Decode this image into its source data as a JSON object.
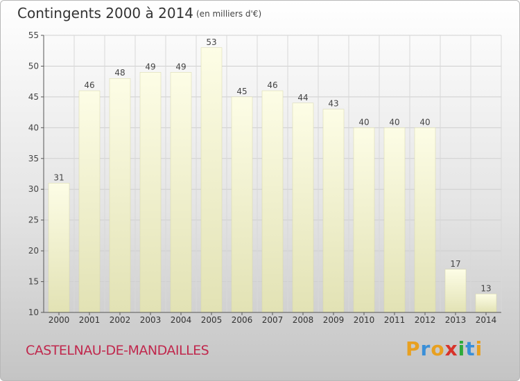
{
  "chart_data": {
    "type": "bar",
    "title": "Contingents 2000 à 2014",
    "subtitle": "(en milliers d'€)",
    "categories": [
      "2000",
      "2001",
      "2002",
      "2003",
      "2004",
      "2005",
      "2006",
      "2007",
      "2008",
      "2009",
      "2010",
      "2011",
      "2012",
      "2013",
      "2014"
    ],
    "values": [
      31,
      46,
      48,
      49,
      49,
      53,
      45,
      46,
      44,
      43,
      40,
      40,
      40,
      17,
      13
    ],
    "xlabel": "",
    "ylabel": "",
    "ylim": [
      10,
      55
    ],
    "yticks": [
      10,
      15,
      20,
      25,
      30,
      35,
      40,
      45,
      50,
      55
    ],
    "grid": true,
    "legend": "none",
    "bar_color": "#f4f4c8"
  },
  "footer": {
    "commune": "CASTELNAU-DE-MANDAILLES",
    "logo": "Proxiti"
  },
  "colors": {
    "commune_text": "#c0284d",
    "logo_letters": [
      "#e8a020",
      "#3a8fd8",
      "#e8a020",
      "#d8332a",
      "#2eaa3a",
      "#3a8fd8",
      "#e8a020"
    ]
  }
}
